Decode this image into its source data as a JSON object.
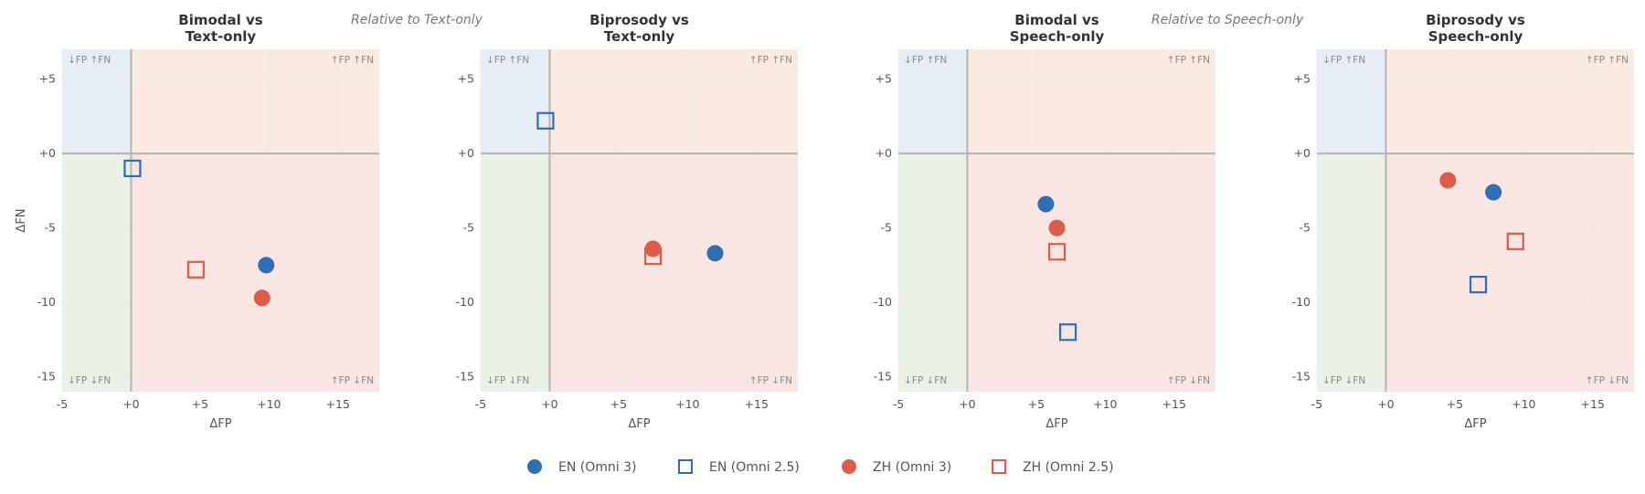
{
  "colors": {
    "en": "#2f6db5",
    "zh": "#dd5c48",
    "quadrant_top_left": "#e7edf5",
    "quadrant_top_right": "#fbeadf",
    "quadrant_bottom_left": "#e9f2e4",
    "quadrant_bottom_right": "#f9e5e2"
  },
  "group_labels": [
    "Relative to Text-only",
    "Relative to Speech-only"
  ],
  "corner_labels": {
    "top_left": "↓FP ↑FN",
    "top_right": "↑FP ↑FN",
    "bottom_left": "↓FP ↓FN",
    "bottom_right": "↑FP ↓FN"
  },
  "legend": [
    {
      "label": "EN (Omni 3)",
      "marker": "filled-circle",
      "color": "#2f6db5"
    },
    {
      "label": "EN (Omni 2.5)",
      "marker": "open-square",
      "color": "#2f6db5"
    },
    {
      "label": "ZH (Omni 3)",
      "marker": "filled-circle",
      "color": "#dd5c48"
    },
    {
      "label": "ZH (Omni 2.5)",
      "marker": "open-square",
      "color": "#dd5c48"
    }
  ],
  "chart_data": [
    {
      "type": "scatter",
      "title": [
        "Bimodal vs",
        "Text-only"
      ],
      "xlabel": "ΔFP",
      "ylabel": "ΔFN",
      "xlim": [
        -5,
        18
      ],
      "ylim": [
        -16,
        7
      ],
      "xticks": [
        -5,
        0,
        5,
        10,
        15
      ],
      "xtick_labels": [
        "-5",
        "+0",
        "+5",
        "+10",
        "+15"
      ],
      "yticks": [
        5,
        0,
        -5,
        -10,
        -15
      ],
      "ytick_labels": [
        "+5",
        "+0",
        "-5",
        "-10",
        "-15"
      ],
      "grid": true,
      "series": [
        {
          "name": "EN (Omni 3)",
          "x": 9.8,
          "y": -7.5
        },
        {
          "name": "EN (Omni 2.5)",
          "x": 0.1,
          "y": -1.0
        },
        {
          "name": "ZH (Omni 3)",
          "x": 9.5,
          "y": -9.7
        },
        {
          "name": "ZH (Omni 2.5)",
          "x": 4.7,
          "y": -7.8
        }
      ]
    },
    {
      "type": "scatter",
      "title": [
        "Biprosody vs",
        "Text-only"
      ],
      "xlabel": "ΔFP",
      "ylabel": "",
      "xlim": [
        -5,
        18
      ],
      "ylim": [
        -16,
        7
      ],
      "xticks": [
        -5,
        0,
        5,
        10,
        15
      ],
      "xtick_labels": [
        "-5",
        "+0",
        "+5",
        "+10",
        "+15"
      ],
      "yticks": [
        5,
        0,
        -5,
        -10,
        -15
      ],
      "ytick_labels": [
        "+5",
        "+0",
        "-5",
        "-10",
        "-15"
      ],
      "grid": true,
      "series": [
        {
          "name": "EN (Omni 3)",
          "x": 12.0,
          "y": -6.7
        },
        {
          "name": "EN (Omni 2.5)",
          "x": -0.3,
          "y": 2.2
        },
        {
          "name": "ZH (Omni 3)",
          "x": 7.5,
          "y": -6.4
        },
        {
          "name": "ZH (Omni 2.5)",
          "x": 7.5,
          "y": -6.9
        }
      ]
    },
    {
      "type": "scatter",
      "title": [
        "Bimodal vs",
        "Speech-only"
      ],
      "xlabel": "ΔFP",
      "ylabel": "",
      "xlim": [
        -5,
        18
      ],
      "ylim": [
        -16,
        7
      ],
      "xticks": [
        -5,
        0,
        5,
        10,
        15
      ],
      "xtick_labels": [
        "-5",
        "+0",
        "+5",
        "+10",
        "+15"
      ],
      "yticks": [
        5,
        0,
        -5,
        -10,
        -15
      ],
      "ytick_labels": [
        "+5",
        "+0",
        "-5",
        "-10",
        "-15"
      ],
      "grid": true,
      "series": [
        {
          "name": "EN (Omni 3)",
          "x": 5.7,
          "y": -3.4
        },
        {
          "name": "EN (Omni 2.5)",
          "x": 7.3,
          "y": -12.0
        },
        {
          "name": "ZH (Omni 3)",
          "x": 6.5,
          "y": -5.0
        },
        {
          "name": "ZH (Omni 2.5)",
          "x": 6.5,
          "y": -6.6
        }
      ]
    },
    {
      "type": "scatter",
      "title": [
        "Biprosody vs",
        "Speech-only"
      ],
      "xlabel": "ΔFP",
      "ylabel": "",
      "xlim": [
        -5,
        18
      ],
      "ylim": [
        -16,
        7
      ],
      "xticks": [
        -5,
        0,
        5,
        10,
        15
      ],
      "xtick_labels": [
        "-5",
        "+0",
        "+5",
        "+10",
        "+15"
      ],
      "yticks": [
        5,
        0,
        -5,
        -10,
        -15
      ],
      "ytick_labels": [
        "+5",
        "+0",
        "-5",
        "-10",
        "-15"
      ],
      "grid": true,
      "series": [
        {
          "name": "EN (Omni 3)",
          "x": 7.8,
          "y": -2.6
        },
        {
          "name": "EN (Omni 2.5)",
          "x": 6.7,
          "y": -8.8
        },
        {
          "name": "ZH (Omni 3)",
          "x": 4.5,
          "y": -1.8
        },
        {
          "name": "ZH (Omni 2.5)",
          "x": 9.4,
          "y": -5.9
        }
      ]
    }
  ]
}
